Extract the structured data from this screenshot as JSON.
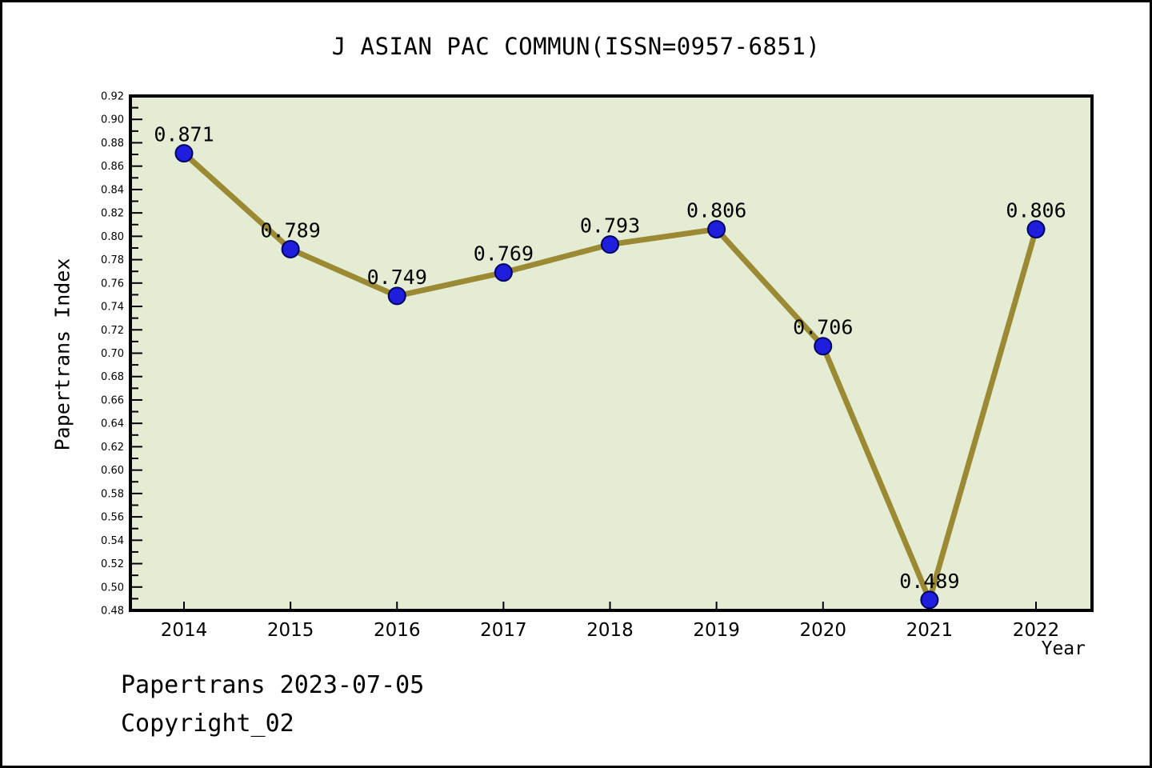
{
  "chart_data": {
    "type": "line",
    "title": "J ASIAN PAC COMMUN(ISSN=0957-6851)",
    "x": [
      2014,
      2015,
      2016,
      2017,
      2018,
      2019,
      2020,
      2021,
      2022
    ],
    "series": [
      {
        "name": "Papertrans Index",
        "values": [
          0.871,
          0.789,
          0.749,
          0.769,
          0.793,
          0.806,
          0.706,
          0.489,
          0.806
        ]
      }
    ],
    "xlabel": "Year",
    "ylabel": "Papertrans Index",
    "ylim": [
      0.48,
      0.92
    ],
    "ytick_major": 0.02,
    "ytick_minor": 0.01,
    "grid": false,
    "legend": "none",
    "point_labels": true,
    "colors": {
      "line": "#9b8a33",
      "marker_fill": "#1e1edc",
      "marker_edge": "#000060",
      "plot_bg": "#e4edd4",
      "axis": "#000000",
      "text": "#000000"
    }
  },
  "footer": {
    "line1": "Papertrans 2023-07-05",
    "line2": "Copyright_02"
  }
}
